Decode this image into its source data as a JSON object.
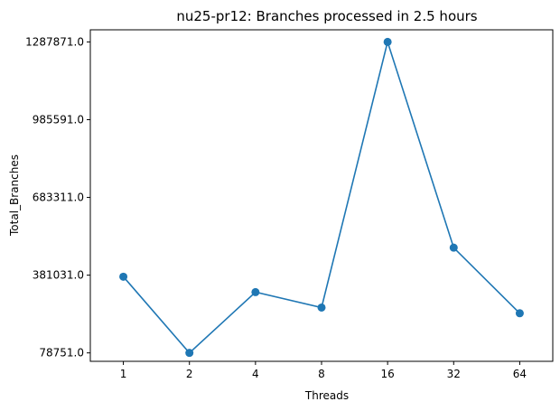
{
  "chart_data": {
    "type": "line",
    "title": "nu25-pr12: Branches processed in 2.5 hours",
    "xlabel": "Threads",
    "ylabel": "Total_Branches",
    "categories": [
      "1",
      "2",
      "4",
      "8",
      "16",
      "32",
      "64"
    ],
    "series": [
      {
        "values": [
          375000,
          78751,
          315000,
          255000,
          1287871,
          488000,
          233000
        ]
      }
    ],
    "yticks": [
      78751.0,
      381031.0,
      683311.0,
      985591.0,
      1287871.0
    ],
    "ytick_labels": [
      "78751.0",
      "381031.0",
      "683311.0",
      "985591.0",
      "1287871.0"
    ],
    "ylim": [
      46000,
      1335000
    ],
    "grid": false,
    "color": "#1f77b4"
  }
}
